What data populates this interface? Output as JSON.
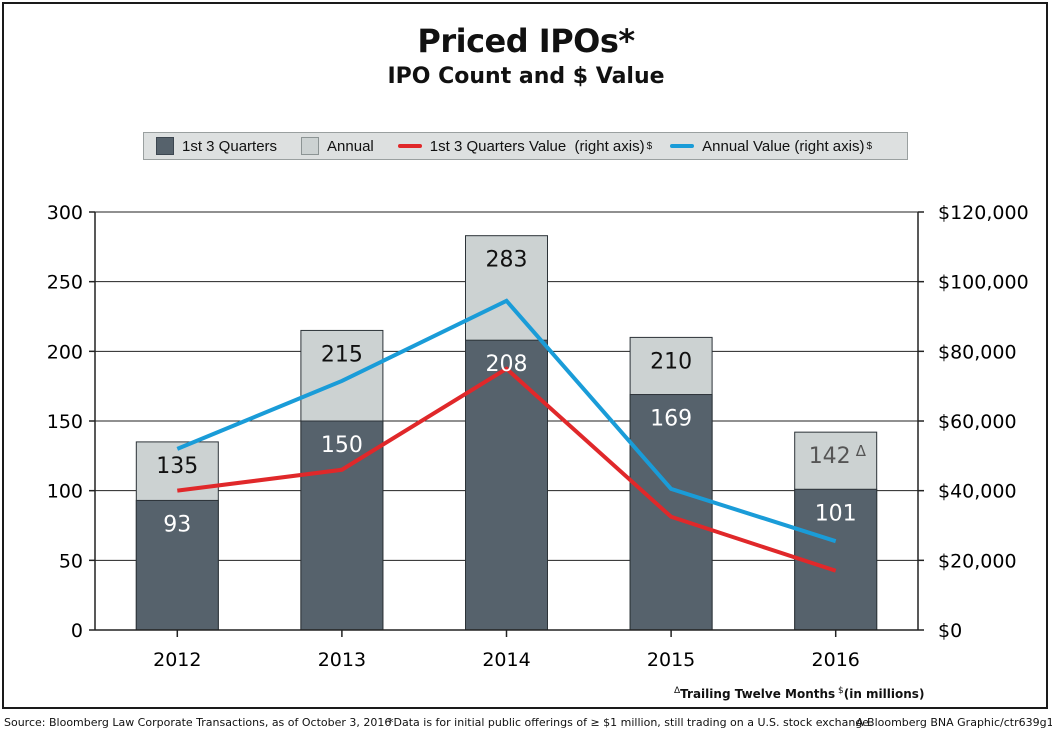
{
  "chart_data": {
    "type": "bar",
    "title": "Priced IPOs*",
    "subtitle": "IPO Count and $ Value",
    "categories": [
      "2012",
      "2013",
      "2014",
      "2015",
      "2016"
    ],
    "series": [
      {
        "name": "1st 3 Quarters",
        "kind": "bar",
        "axis": "left",
        "values": [
          93,
          150,
          208,
          169,
          101
        ],
        "color": "#56626c"
      },
      {
        "name": "Annual",
        "kind": "bar",
        "axis": "left",
        "values": [
          135,
          215,
          283,
          210,
          142
        ],
        "color": "#ccd2d2"
      },
      {
        "name": "1st 3 Quarters Value  (right axis)",
        "kind": "line",
        "axis": "right",
        "values": [
          40000,
          46000,
          75000,
          32500,
          17000
        ],
        "color": "#e0282a"
      },
      {
        "name": "Annual Value (right axis)",
        "kind": "line",
        "axis": "right",
        "values": [
          52000,
          71500,
          94500,
          40500,
          25500
        ],
        "color": "#1a9cd8"
      }
    ],
    "bar_labels": {
      "q3": [
        "93",
        "150",
        "208",
        "169",
        "101"
      ],
      "annual": [
        "135",
        "215",
        "283",
        "210",
        "142"
      ]
    },
    "annual_label_marks": [
      "",
      "",
      "",
      "",
      "Δ"
    ],
    "ylim_left": [
      0,
      300
    ],
    "yticks_left": [
      "0",
      "50",
      "100",
      "150",
      "200",
      "250",
      "300"
    ],
    "ylim_right": [
      0,
      120000
    ],
    "yticks_right": [
      "$0",
      "$20,000",
      "$40,000",
      "$60,000",
      "$80,000",
      "$100,000",
      "$120,000"
    ],
    "legend_position": "top",
    "grid": true
  },
  "legend": {
    "q3_label": "1st 3 Quarters",
    "annual_label": "Annual",
    "q3_value_label": "1st 3 Quarters Value  (right axis)",
    "annual_value_label": "Annual Value (right axis)",
    "dollar_mark": "$"
  },
  "notes": {
    "triangle": "Δ",
    "ttm": "Trailing Twelve Months",
    "dollar": "$",
    "millions": "(in millions)",
    "source": "Source: Bloomberg Law Corporate Transactions, as of October 3, 2016",
    "data_note": "*Data is for initial public offerings of ≥ $1 million, still trading on a U.S. stock exchange.",
    "credit": "A Bloomberg BNA Graphic/ctr639g1"
  }
}
